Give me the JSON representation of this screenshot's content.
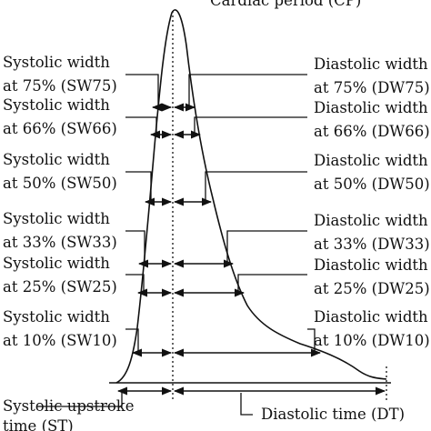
{
  "header_label": "Cardiac period (CP)",
  "systolic_labels": [
    {
      "line1": "Systolic width",
      "line2": "at 75% (SW75)"
    },
    {
      "line1": "Systolic width",
      "line2": "at 66% (SW66)"
    },
    {
      "line1": "Systolic width",
      "line2": "at 50% (SW50)"
    },
    {
      "line1": "Systolic width",
      "line2": "at 33% (SW33)"
    },
    {
      "line1": "Systolic width",
      "line2": "at 25% (SW25)"
    },
    {
      "line1": "Systolic width",
      "line2": "at 10% (SW10)"
    }
  ],
  "diastolic_labels": [
    {
      "line1": "Diastolic width",
      "line2": "at 75% (DW75)"
    },
    {
      "line1": "Diastolic width",
      "line2": "at 66% (DW66)"
    },
    {
      "line1": "Diastolic width",
      "line2": "at 50% (DW50)"
    },
    {
      "line1": "Diastolic width",
      "line2": "at 33% (DW33)"
    },
    {
      "line1": "Diastolic width",
      "line2": "at 25% (DW25)"
    },
    {
      "line1": "Diastolic width",
      "line2": "at 10% (DW10)"
    }
  ],
  "bottom_labels": {
    "systolic_upstroke_line1": "Systolic upstroke",
    "systolic_upstroke_line2": "time (ST)",
    "diastolic_time": "Diastolic time (DT)"
  }
}
